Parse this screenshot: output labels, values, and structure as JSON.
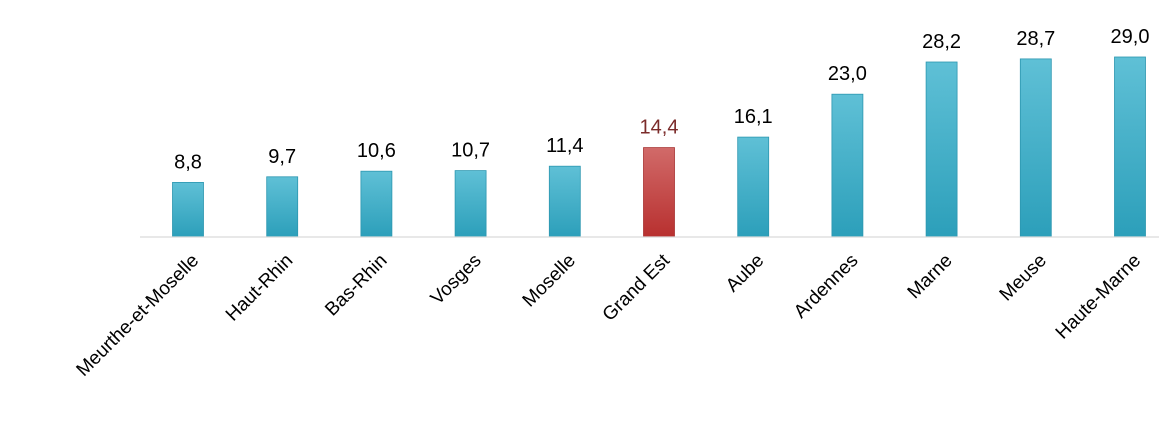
{
  "chart_data": {
    "type": "bar",
    "title": "",
    "xlabel": "",
    "ylabel": "",
    "categories": [
      "Meurthe-et-Moselle",
      "Haut-Rhin",
      "Bas-Rhin",
      "Vosges",
      "Moselle",
      "Grand Est",
      "Aube",
      "Ardennes",
      "Marne",
      "Meuse",
      "Haute-Marne"
    ],
    "values": [
      8.8,
      9.7,
      10.6,
      10.7,
      11.4,
      14.4,
      16.1,
      23.0,
      28.2,
      28.7,
      29.0
    ],
    "value_labels": [
      "8,8",
      "9,7",
      "10,6",
      "10,7",
      "11,4",
      "14,4",
      "16,1",
      "23,0",
      "28,2",
      "28,7",
      "29,0"
    ],
    "highlight_category": "Grand Est",
    "ylim": [
      0,
      29.0
    ],
    "grid": false,
    "legend": "none",
    "colors": {
      "bar": "#3aaec9",
      "bar_dark": "#2c97b0",
      "highlight": "#c0403f",
      "highlight_dark": "#a83332",
      "highlight_label": "#7b2b2a",
      "label": "#000000",
      "axis": "#d9d9d9"
    }
  }
}
